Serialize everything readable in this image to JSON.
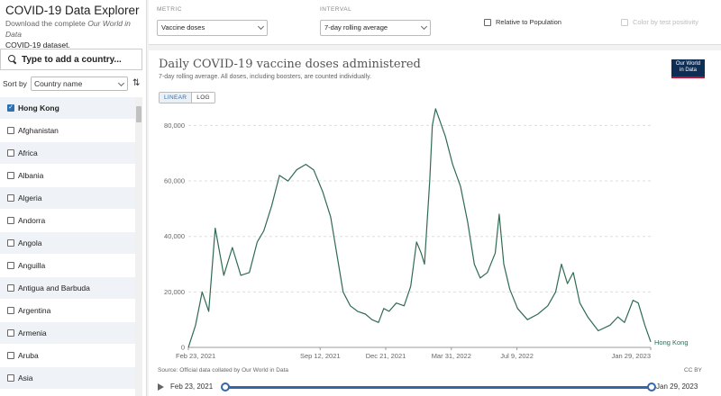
{
  "brand": {
    "title": "COVID-19 Data Explorer",
    "desc_prefix": "Download the complete ",
    "desc_italic": "Our World in Data",
    "desc_link": "COVID-19 dataset."
  },
  "search": {
    "placeholder": "Type to add a country..."
  },
  "sort": {
    "label": "Sort by",
    "selected": "Country name",
    "order_icon": "sort-order-icon"
  },
  "countries": [
    {
      "name": "Hong Kong",
      "checked": true
    },
    {
      "name": "Afghanistan",
      "checked": false
    },
    {
      "name": "Africa",
      "checked": false
    },
    {
      "name": "Albania",
      "checked": false
    },
    {
      "name": "Algeria",
      "checked": false
    },
    {
      "name": "Andorra",
      "checked": false
    },
    {
      "name": "Angola",
      "checked": false
    },
    {
      "name": "Anguilla",
      "checked": false
    },
    {
      "name": "Antigua and Barbuda",
      "checked": false
    },
    {
      "name": "Argentina",
      "checked": false
    },
    {
      "name": "Armenia",
      "checked": false
    },
    {
      "name": "Aruba",
      "checked": false
    },
    {
      "name": "Asia",
      "checked": false
    }
  ],
  "controls": {
    "metric_label": "METRIC",
    "metric_value": "Vaccine doses",
    "interval_label": "INTERVAL",
    "interval_value": "7-day rolling average",
    "relative_label": "Relative to Population",
    "color_label": "Color by test positivity"
  },
  "chart": {
    "title": "Daily COVID-19 vaccine doses administered",
    "subtitle": "7-day rolling average. All doses, including boosters, are counted individually.",
    "logo_line1": "Our World",
    "logo_line2": "in Data",
    "scale_linear": "LINEAR",
    "scale_log": "LOG",
    "source": "Source: Official data collated by Our World in Data",
    "license": "CC BY",
    "line_color": "#2f6b52"
  },
  "chart_data": {
    "type": "line",
    "title": "Daily COVID-19 vaccine doses administered",
    "subtitle": "7-day rolling average. All doses, including boosters, are counted individually.",
    "xlabel": "",
    "ylabel": "",
    "ylim": [
      0,
      85000
    ],
    "y_ticks": [
      0,
      20000,
      40000,
      60000,
      80000
    ],
    "y_tick_labels": [
      "0",
      "20,000",
      "40,000",
      "60,000",
      "80,000"
    ],
    "x_range": [
      "2021-02-23",
      "2023-01-29"
    ],
    "x_ticks": [
      "2021-02-23",
      "2021-09-12",
      "2021-12-21",
      "2022-03-31",
      "2022-07-09",
      "2023-01-29"
    ],
    "x_tick_labels": [
      "Feb 23, 2021",
      "Sep 12, 2021",
      "Dec 21, 2021",
      "Mar 31, 2022",
      "Jul 9, 2022",
      "Jan 29, 2023"
    ],
    "grid": true,
    "series": [
      {
        "name": "Hong Kong",
        "color": "#2f6b52",
        "points": [
          [
            "2021-02-23",
            0
          ],
          [
            "2021-03-06",
            8000
          ],
          [
            "2021-03-16",
            20000
          ],
          [
            "2021-03-26",
            13000
          ],
          [
            "2021-04-05",
            43000
          ],
          [
            "2021-04-18",
            26000
          ],
          [
            "2021-05-01",
            36000
          ],
          [
            "2021-05-14",
            26000
          ],
          [
            "2021-05-27",
            27000
          ],
          [
            "2021-06-08",
            38000
          ],
          [
            "2021-06-18",
            42000
          ],
          [
            "2021-06-30",
            51000
          ],
          [
            "2021-07-12",
            62000
          ],
          [
            "2021-07-25",
            60000
          ],
          [
            "2021-08-07",
            64000
          ],
          [
            "2021-08-21",
            66000
          ],
          [
            "2021-09-02",
            64000
          ],
          [
            "2021-09-16",
            56000
          ],
          [
            "2021-09-28",
            47000
          ],
          [
            "2021-10-10",
            30000
          ],
          [
            "2021-10-17",
            20000
          ],
          [
            "2021-10-28",
            15000
          ],
          [
            "2021-11-08",
            13000
          ],
          [
            "2021-11-20",
            12000
          ],
          [
            "2021-11-30",
            10000
          ],
          [
            "2021-12-10",
            9000
          ],
          [
            "2021-12-18",
            14000
          ],
          [
            "2021-12-26",
            13000
          ],
          [
            "2022-01-06",
            16000
          ],
          [
            "2022-01-18",
            15000
          ],
          [
            "2022-01-28",
            22000
          ],
          [
            "2022-02-06",
            38000
          ],
          [
            "2022-02-13",
            34000
          ],
          [
            "2022-02-18",
            30000
          ],
          [
            "2022-02-22",
            45000
          ],
          [
            "2022-02-26",
            60000
          ],
          [
            "2022-03-02",
            80000
          ],
          [
            "2022-03-07",
            86000
          ],
          [
            "2022-03-13",
            82000
          ],
          [
            "2022-03-22",
            76000
          ],
          [
            "2022-04-02",
            66000
          ],
          [
            "2022-04-14",
            58000
          ],
          [
            "2022-04-25",
            45000
          ],
          [
            "2022-05-05",
            30000
          ],
          [
            "2022-05-14",
            25000
          ],
          [
            "2022-05-25",
            27000
          ],
          [
            "2022-06-06",
            34000
          ],
          [
            "2022-06-12",
            48000
          ],
          [
            "2022-06-19",
            30000
          ],
          [
            "2022-06-28",
            21000
          ],
          [
            "2022-07-10",
            14000
          ],
          [
            "2022-07-25",
            10000
          ],
          [
            "2022-08-10",
            12000
          ],
          [
            "2022-08-25",
            15000
          ],
          [
            "2022-09-06",
            20000
          ],
          [
            "2022-09-15",
            30000
          ],
          [
            "2022-09-24",
            23000
          ],
          [
            "2022-10-03",
            27000
          ],
          [
            "2022-10-13",
            16000
          ],
          [
            "2022-10-25",
            11000
          ],
          [
            "2022-11-10",
            6000
          ],
          [
            "2022-11-28",
            8000
          ],
          [
            "2022-12-10",
            11000
          ],
          [
            "2022-12-20",
            9000
          ],
          [
            "2023-01-02",
            17000
          ],
          [
            "2023-01-10",
            16000
          ],
          [
            "2023-01-20",
            8000
          ],
          [
            "2023-01-29",
            2000
          ]
        ]
      }
    ]
  },
  "timeline": {
    "play_icon": "play-icon",
    "start": "Feb 23, 2021",
    "end": "Jan 29, 2023"
  }
}
